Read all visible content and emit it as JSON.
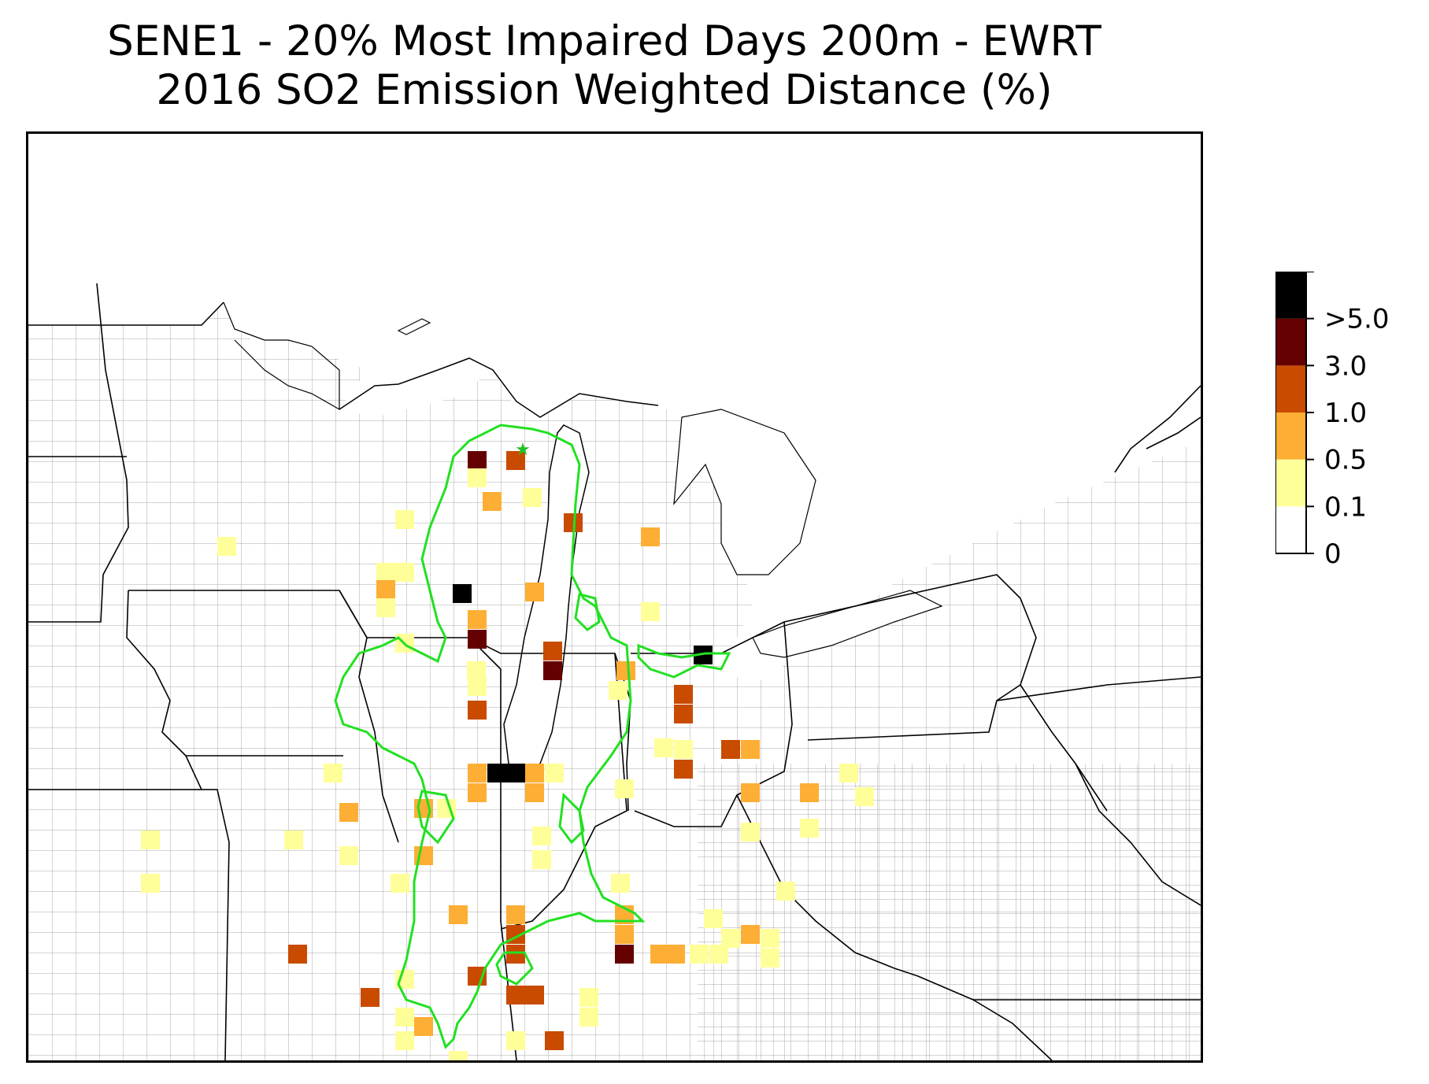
{
  "title": {
    "line1": "SENE1 - 20% Most Impaired Days 200m - EWRT",
    "line2": "2016 SO2 Emission Weighted Distance (%)"
  },
  "colorbar": {
    "ticks": [
      "0",
      "0.1",
      "0.5",
      "1.0",
      "3.0",
      ">5.0"
    ],
    "bins": [
      {
        "range": "0-0.1",
        "color": "#ffffff"
      },
      {
        "range": "0.1-0.5",
        "color": "#ffff99"
      },
      {
        "range": "0.5-1.0",
        "color": "#fdae35"
      },
      {
        "range": "1.0-3.0",
        "color": "#c84b00"
      },
      {
        "range": "3.0-5.0",
        "color": "#640000"
      },
      {
        "range": ">5.0",
        "color": "#000000"
      }
    ]
  },
  "map": {
    "site": "SENE1",
    "site_marker": "green-star",
    "contour_color": "#22e022",
    "state_border_color": "#000000",
    "county_border_color": "#a0a0a0"
  }
}
